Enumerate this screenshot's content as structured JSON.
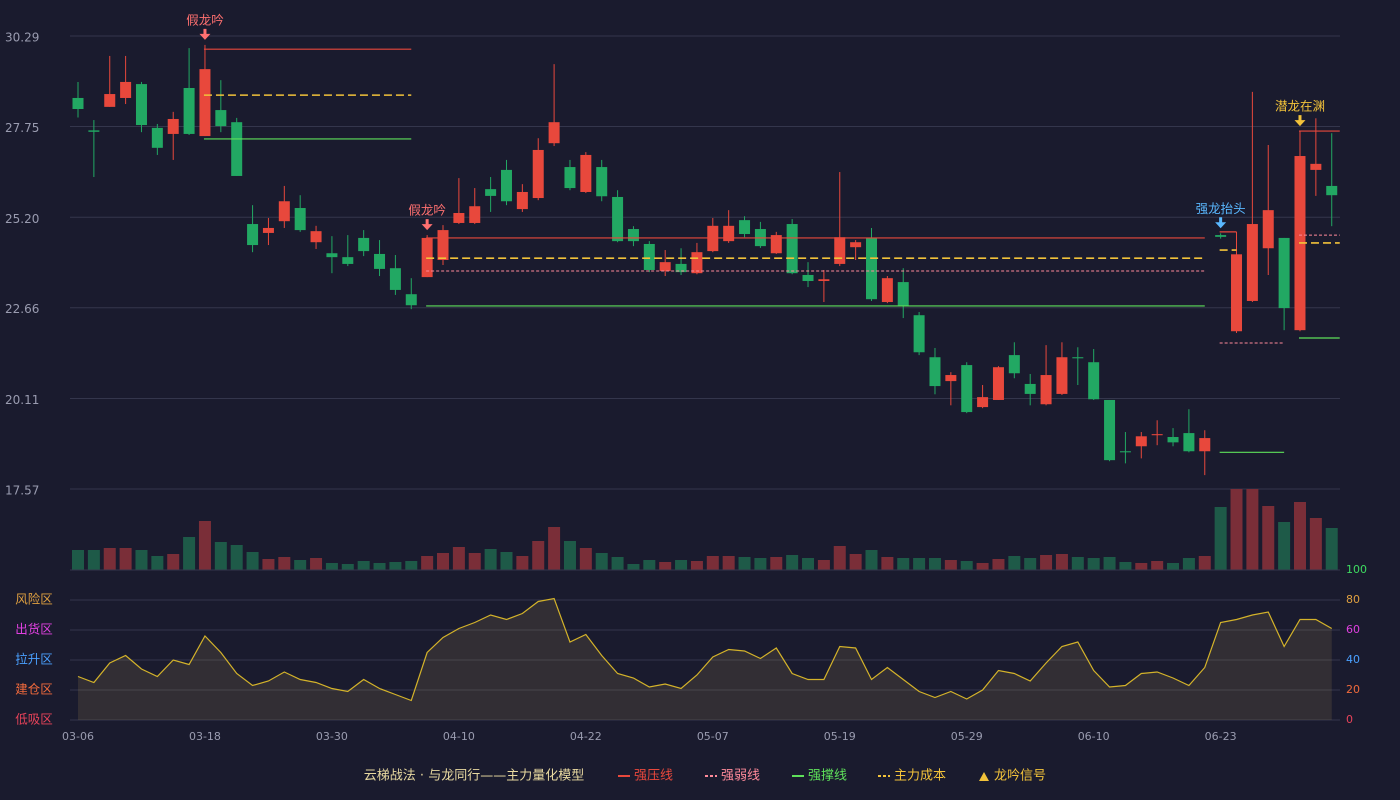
{
  "chart_data": {
    "type": "candlestick",
    "categories": [
      "03-06",
      null,
      null,
      null,
      null,
      null,
      null,
      null,
      "03-18",
      null,
      null,
      null,
      null,
      null,
      null,
      null,
      "03-30",
      null,
      null,
      null,
      null,
      null,
      null,
      null,
      "04-10",
      null,
      null,
      null,
      null,
      null,
      null,
      null,
      "04-22",
      null,
      null,
      null,
      null,
      null,
      null,
      null,
      "05-07",
      null,
      null,
      null,
      null,
      null,
      null,
      null,
      "05-19",
      null,
      null,
      null,
      null,
      null,
      null,
      null,
      "05-29",
      null,
      null,
      null,
      null,
      null,
      null,
      null,
      "06-10",
      null,
      null,
      null,
      null,
      null,
      null,
      null,
      "06-23",
      null,
      null,
      null,
      null,
      null,
      null,
      null
    ],
    "open": [
      28.55,
      27.64,
      28.3,
      28.55,
      28.94,
      27.71,
      27.54,
      28.83,
      27.48,
      28.21,
      27.87,
      25.01,
      24.76,
      25.09,
      25.46,
      24.5,
      24.19,
      24.08,
      24.62,
      24.17,
      23.77,
      23.04,
      23.52,
      24.0,
      25.04,
      25.04,
      25.99,
      26.53,
      25.43,
      25.74,
      27.28,
      26.61,
      25.91,
      26.61,
      25.77,
      24.87,
      24.45,
      23.69,
      23.89,
      23.63,
      24.25,
      24.53,
      25.12,
      24.87,
      24.19,
      25.01,
      23.58,
      23.41,
      23.89,
      24.36,
      24.62,
      22.82,
      23.38,
      22.45,
      21.27,
      20.6,
      21.05,
      19.87,
      20.07,
      21.33,
      20.52,
      19.95,
      20.24,
      21.27,
      21.13,
      20.07,
      18.63,
      18.77,
      19.08,
      19.03,
      19.14,
      18.63,
      24.7,
      22.0,
      22.85,
      24.33,
      24.62,
      22.03,
      26.53,
      26.08
    ],
    "close": [
      28.24,
      27.6,
      28.66,
      29.0,
      27.79,
      27.15,
      27.96,
      27.54,
      29.36,
      27.76,
      26.36,
      24.42,
      24.9,
      25.65,
      24.84,
      24.81,
      24.08,
      23.89,
      24.25,
      23.75,
      23.16,
      22.73,
      24.62,
      24.84,
      25.32,
      25.51,
      25.8,
      25.65,
      25.91,
      27.09,
      27.87,
      26.02,
      26.95,
      25.79,
      24.53,
      24.53,
      23.72,
      23.94,
      23.66,
      24.22,
      24.96,
      24.96,
      24.73,
      24.39,
      24.7,
      23.63,
      23.41,
      23.46,
      24.64,
      24.5,
      22.9,
      23.49,
      22.71,
      21.41,
      20.46,
      20.77,
      19.73,
      20.15,
      20.99,
      20.82,
      20.24,
      20.77,
      21.27,
      21.24,
      20.09,
      18.38,
      18.6,
      19.05,
      19.11,
      18.88,
      18.63,
      19.0,
      24.65,
      24.16,
      25.01,
      25.4,
      22.65,
      26.92,
      26.7,
      25.82
    ],
    "high": [
      29.0,
      27.93,
      29.73,
      29.73,
      29.0,
      27.82,
      28.16,
      29.95,
      30.04,
      29.05,
      27.99,
      25.54,
      25.18,
      26.08,
      25.82,
      24.96,
      24.67,
      24.7,
      24.84,
      24.56,
      24.14,
      23.49,
      24.7,
      24.98,
      26.3,
      26.02,
      26.33,
      26.81,
      26.13,
      27.42,
      29.5,
      26.81,
      27.03,
      26.81,
      25.96,
      24.95,
      24.53,
      24.28,
      24.33,
      24.48,
      25.18,
      25.4,
      25.23,
      25.07,
      24.79,
      25.15,
      23.94,
      23.72,
      26.47,
      24.56,
      24.9,
      23.55,
      23.77,
      22.54,
      21.53,
      20.85,
      21.13,
      20.49,
      21.02,
      21.69,
      20.8,
      21.61,
      21.69,
      21.55,
      21.5,
      20.07,
      19.17,
      19.17,
      19.5,
      19.28,
      19.81,
      19.22,
      24.75,
      24.79,
      28.72,
      27.23,
      24.62,
      27.62,
      27.98,
      27.56
    ],
    "low": [
      28.0,
      26.33,
      28.3,
      28.38,
      27.59,
      26.95,
      26.81,
      27.51,
      27.48,
      27.59,
      26.36,
      24.22,
      24.42,
      24.9,
      24.79,
      24.31,
      23.63,
      23.83,
      24.11,
      23.55,
      23.02,
      22.62,
      23.52,
      23.86,
      25.01,
      25.01,
      25.35,
      25.54,
      25.35,
      25.68,
      27.2,
      25.96,
      25.88,
      25.65,
      24.5,
      24.39,
      23.66,
      23.55,
      23.58,
      23.6,
      24.22,
      24.48,
      24.64,
      24.34,
      24.17,
      23.6,
      23.24,
      22.82,
      23.83,
      24.0,
      22.85,
      22.79,
      22.37,
      21.33,
      20.23,
      19.92,
      19.7,
      19.84,
      20.07,
      20.68,
      19.92,
      19.92,
      20.21,
      20.49,
      20.07,
      18.35,
      18.29,
      18.43,
      18.8,
      18.77,
      18.6,
      17.96,
      24.6,
      21.95,
      22.82,
      23.58,
      22.03,
      22.0,
      25.8,
      24.95
    ],
    "volume": [
      20,
      20,
      22,
      22,
      20,
      14,
      16,
      33,
      49,
      28,
      25,
      18,
      11,
      13,
      10,
      12,
      7,
      6,
      9,
      7,
      8,
      9,
      14,
      17,
      23,
      17,
      21,
      18,
      14,
      29,
      43,
      29,
      22,
      17,
      13,
      6,
      10,
      8,
      10,
      9,
      14,
      14,
      13,
      12,
      13,
      15,
      12,
      10,
      24,
      16,
      20,
      13,
      12,
      12,
      12,
      10,
      9,
      7,
      11,
      14,
      12,
      15,
      16,
      13,
      12,
      13,
      8,
      7,
      9,
      7,
      12,
      14,
      63,
      81,
      81,
      64,
      48,
      68,
      52,
      42
    ],
    "up_color": "#e8483c",
    "down_color": "#22a863",
    "ylim": [
      17.57,
      30.29
    ],
    "yticks": [
      30.29,
      27.75,
      {
        "value": 25.2,
        "label": "25.20"
      },
      22.66,
      20.11,
      17.57
    ],
    "oscillator": {
      "color": "#d4b32a",
      "values": [
        29,
        25,
        38,
        43,
        34,
        29,
        40,
        37,
        56,
        45,
        31,
        23,
        26,
        32,
        27,
        25,
        21,
        19,
        27,
        21,
        17,
        13,
        45,
        55,
        61,
        65,
        70,
        67,
        71,
        79,
        81,
        52,
        57,
        43,
        31,
        28,
        22,
        24,
        21,
        30,
        42,
        47,
        46,
        41,
        48,
        31,
        27,
        27,
        49,
        48,
        27,
        35,
        27,
        19,
        15,
        19,
        14,
        20,
        33,
        31,
        26,
        38,
        49,
        52,
        33,
        22,
        23,
        31,
        32,
        28,
        23,
        35,
        65,
        67,
        70,
        72,
        49,
        67,
        67,
        61
      ],
      "y2lim": [
        0,
        100
      ],
      "y2ticks": [
        0,
        20,
        40,
        60,
        80,
        100
      ],
      "y2tick_colors": [
        "#e8435a",
        "#f06a3c",
        "#4aa0ff",
        "#e040e0",
        "#e0a040",
        "#3ddc60"
      ],
      "zones": [
        {
          "label": "风险区",
          "value": 80,
          "color": "#e0a040"
        },
        {
          "label": "出货区",
          "value": 60,
          "color": "#e040e0"
        },
        {
          "label": "拉升区",
          "value": 40,
          "color": "#4aa0ff"
        },
        {
          "label": "建仓区",
          "value": 20,
          "color": "#f06a3c"
        },
        {
          "label": "低吸区",
          "value": 0,
          "color": "#e8435a"
        }
      ]
    },
    "levels": [
      {
        "name": "强压线",
        "color": "#e8483c",
        "dashed": false,
        "segments": [
          {
            "from": 8,
            "to": 21,
            "value": 29.92
          },
          {
            "from": 22,
            "to": 71,
            "value": 24.62
          },
          {
            "from": 72,
            "to": 73,
            "value": 24.79
          },
          {
            "from": 77,
            "to": 79,
            "value": 27.62
          }
        ]
      },
      {
        "name": "强弱线",
        "color": "#ff8a9a",
        "dashed": true,
        "segments": [
          {
            "from": 22,
            "to": 71,
            "value": 23.69
          },
          {
            "from": 72,
            "to": 76,
            "value": 21.67
          },
          {
            "from": 77,
            "to": 79,
            "value": 24.7
          }
        ]
      },
      {
        "name": "强撑线",
        "color": "#5ee05a",
        "dashed": false,
        "segments": [
          {
            "from": 8,
            "to": 21,
            "value": 27.4
          },
          {
            "from": 22,
            "to": 71,
            "value": 22.71
          },
          {
            "from": 72,
            "to": 76,
            "value": 18.6
          },
          {
            "from": 77,
            "to": 79,
            "value": 21.81
          }
        ]
      },
      {
        "name": "主力成本",
        "color": "#f2c23a",
        "dashed": true,
        "segments": [
          {
            "from": 8,
            "to": 21,
            "value": 28.63
          },
          {
            "from": 22,
            "to": 71,
            "value": 24.05
          },
          {
            "from": 72,
            "to": 73,
            "value": 24.28
          },
          {
            "from": 77,
            "to": 79,
            "value": 24.48
          }
        ]
      }
    ],
    "signals": [
      {
        "label": "假龙吟",
        "index": 8,
        "color": "#ff7070"
      },
      {
        "label": "假龙吟",
        "index": 22,
        "color": "#ff7070"
      },
      {
        "label": "强龙抬头",
        "index": 72,
        "color": "#5ab8ff"
      },
      {
        "label": "潜龙在渊",
        "index": 77,
        "color": "#f2c23a"
      }
    ],
    "legend_title": "云梯战法 · 与龙同行——主力量化模型",
    "signal_legend": "龙吟信号",
    "signal_legend_color": "#f2c23a"
  }
}
